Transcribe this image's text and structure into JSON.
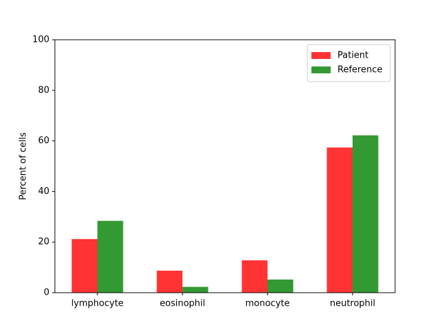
{
  "chart_data": {
    "type": "bar",
    "categories": [
      "lymphocyte",
      "eosinophil",
      "monocyte",
      "neutrophil"
    ],
    "series": [
      {
        "name": "Patient",
        "values": [
          21.2,
          8.7,
          12.8,
          57.4
        ],
        "color": "#ff3333"
      },
      {
        "name": "Reference",
        "values": [
          28.4,
          2.3,
          5.2,
          62.2
        ],
        "color": "#339933"
      }
    ],
    "ylabel": "Percent of cells",
    "xlabel": "",
    "ylim": [
      0,
      100
    ],
    "yticks": [
      "0",
      "20",
      "40",
      "60",
      "80",
      "100"
    ],
    "grid": false,
    "legend": "top-right"
  }
}
